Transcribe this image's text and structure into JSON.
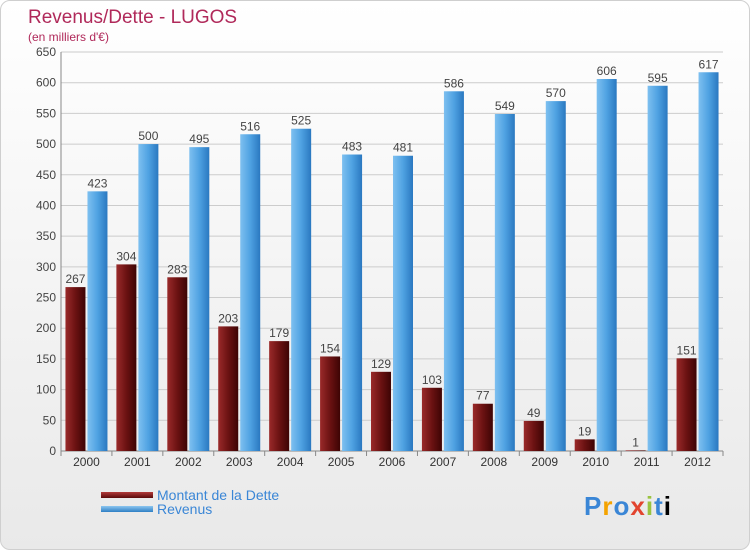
{
  "header": {
    "title": "Revenus/Dette - LUGOS",
    "subtitle": "(en milliers d'€)"
  },
  "legend": {
    "items": [
      "Montant de la Dette",
      "Revenus"
    ]
  },
  "logo": {
    "letters": [
      "P",
      "r",
      "o",
      "x",
      "i",
      "t",
      "i"
    ]
  },
  "colors": {
    "dette": "#7a1a1a",
    "revenus": "#5aa9e6",
    "title": "#b0295a",
    "axis": "#444444"
  },
  "chart_data": {
    "type": "bar",
    "categories": [
      "2000",
      "2001",
      "2002",
      "2003",
      "2004",
      "2005",
      "2006",
      "2007",
      "2008",
      "2009",
      "2010",
      "2011",
      "2012"
    ],
    "series": [
      {
        "name": "Montant de la Dette",
        "values": [
          267,
          304,
          283,
          203,
          179,
          154,
          129,
          103,
          77,
          49,
          19,
          1,
          151
        ]
      },
      {
        "name": "Revenus",
        "values": [
          423,
          500,
          495,
          516,
          525,
          483,
          481,
          586,
          549,
          570,
          606,
          595,
          617
        ]
      }
    ],
    "ylim": [
      0,
      650
    ],
    "yticks": [
      0,
      50,
      100,
      150,
      200,
      250,
      300,
      350,
      400,
      450,
      500,
      550,
      600,
      650
    ],
    "grid": true,
    "legend_position": "bottom-left"
  }
}
